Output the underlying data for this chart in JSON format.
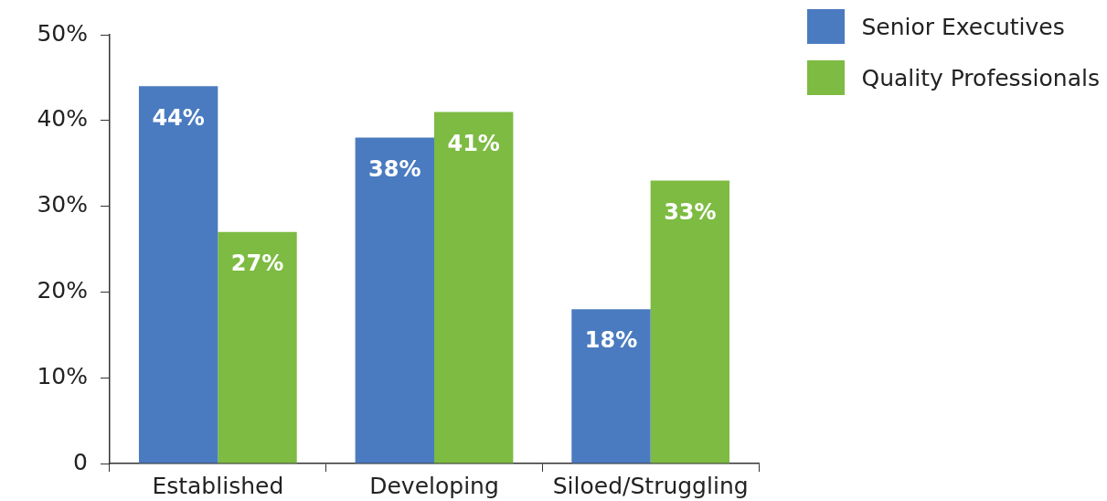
{
  "chart_data": {
    "type": "bar",
    "categories": [
      "Established",
      "Developing",
      "Siloed/Struggling"
    ],
    "series": [
      {
        "name": "Senior Executives",
        "color": "#4a7bc0",
        "values": [
          44,
          38,
          18
        ],
        "value_labels": [
          "44%",
          "38%",
          "18%"
        ]
      },
      {
        "name": "Quality Professionals",
        "color": "#7dbb42",
        "values": [
          27,
          41,
          33
        ],
        "value_labels": [
          "27%",
          "41%",
          "33%"
        ]
      }
    ],
    "ylim": [
      0,
      50
    ],
    "yticks": [
      {
        "value": 0,
        "label": "0"
      },
      {
        "value": 10,
        "label": "10%"
      },
      {
        "value": 20,
        "label": "20%"
      },
      {
        "value": 30,
        "label": "30%"
      },
      {
        "value": 40,
        "label": "40%"
      },
      {
        "value": 50,
        "label": "50%"
      }
    ],
    "legend": "top right"
  }
}
